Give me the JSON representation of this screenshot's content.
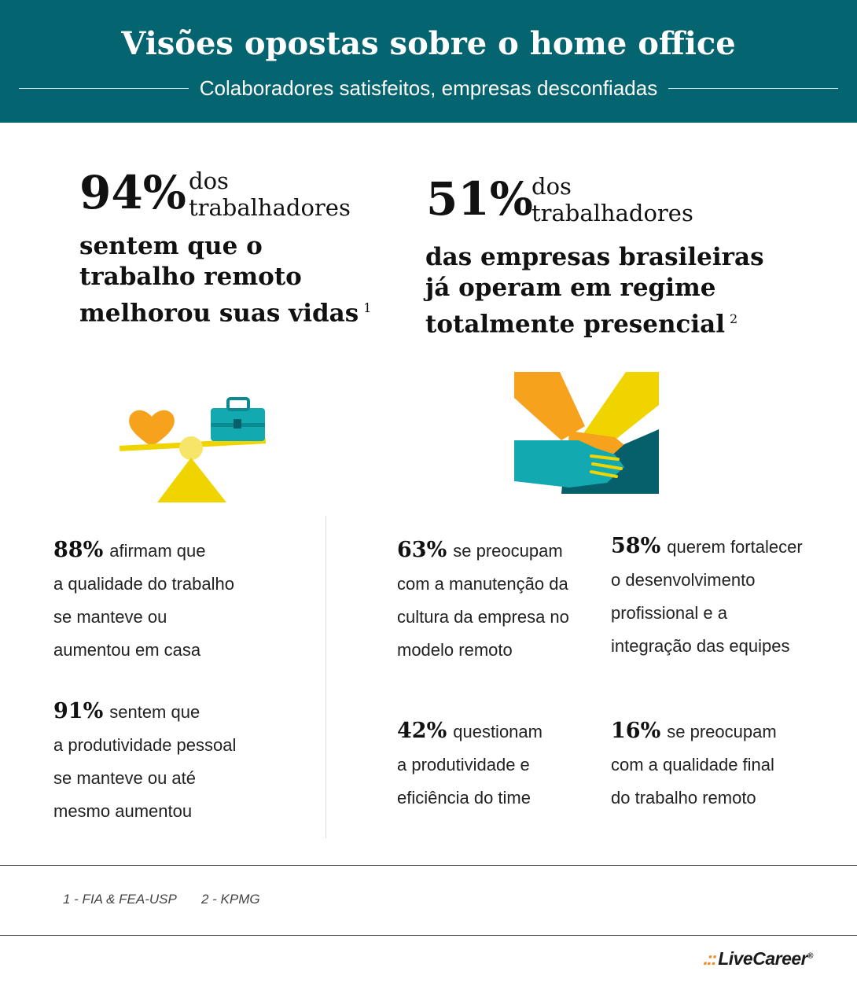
{
  "header": {
    "title": "Visões opostas sobre o home office",
    "subtitle": "Colaboradores satisfeitos, empresas desconfiadas"
  },
  "left_highlight": {
    "value": "94%",
    "label_line1": "dos",
    "label_line2": "trabalhadores",
    "text_lines": [
      "sentem que o",
      "trabalho remoto",
      "melhorou suas vidas"
    ],
    "footnote_ref": "1"
  },
  "right_highlight": {
    "value": "51%",
    "label_line1": "dos",
    "label_line2": "trabalhadores",
    "text_lines": [
      "das empresas brasileiras",
      "já operam em regime",
      "totalmente presencial"
    ],
    "footnote_ref": "2"
  },
  "icons": {
    "left": "balance-scale-heart-briefcase-icon",
    "right": "handshake-icon"
  },
  "stats": [
    {
      "value": "88%",
      "first": "afirmam que",
      "lines": [
        "a qualidade do trabalho",
        "se manteve ou",
        "aumentou em casa"
      ]
    },
    {
      "value": "91%",
      "first": "sentem que",
      "lines": [
        "a produtividade pessoal",
        "se manteve ou até",
        "mesmo aumentou"
      ]
    },
    {
      "value": "63%",
      "first": "se preocupam",
      "lines": [
        "com a manutenção da",
        "cultura da empresa no",
        "modelo remoto"
      ]
    },
    {
      "value": "58%",
      "first": "querem fortalecer",
      "lines": [
        "o desenvolvimento",
        "profissional e a",
        "integração das equipes"
      ]
    },
    {
      "value": "42%",
      "first": "questionam",
      "lines": [
        "a produtividade e",
        "eficiência do time"
      ]
    },
    {
      "value": "16%",
      "first": "se preocupam",
      "lines": [
        "com a qualidade final",
        "do trabalho remoto"
      ]
    }
  ],
  "sources": [
    "1 -  FIA & FEA-USP",
    "2 -  KPMG"
  ],
  "brand": {
    "dots": ".::",
    "name": "LiveCareer",
    "mark": "®"
  },
  "colors": {
    "header": "#046470",
    "orange": "#f6a21d",
    "yellow": "#f0d400",
    "teal": "#12aab0",
    "dark_teal": "#06606b"
  }
}
